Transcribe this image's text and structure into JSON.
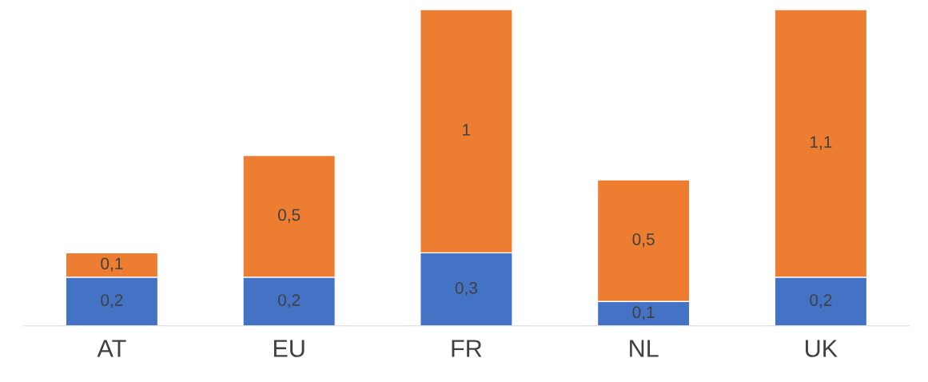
{
  "chart_data": {
    "type": "bar",
    "stacked": true,
    "categories": [
      "AT",
      "EU",
      "FR",
      "NL",
      "UK"
    ],
    "series": [
      {
        "color": "#4472c4",
        "values": [
          0.2,
          0.2,
          0.3,
          0.1,
          0.2
        ],
        "value_labels": [
          "0,2",
          "0,2",
          "0,3",
          "0,1",
          "0,2"
        ]
      },
      {
        "color": "#ed7d31",
        "values": [
          0.1,
          0.5,
          1,
          0.5,
          1.1
        ],
        "value_labels": [
          "0,1",
          "0,5",
          "1",
          "0,5",
          "1,1"
        ]
      }
    ],
    "tick_labels": "x",
    "grid": false,
    "legend": false
  }
}
